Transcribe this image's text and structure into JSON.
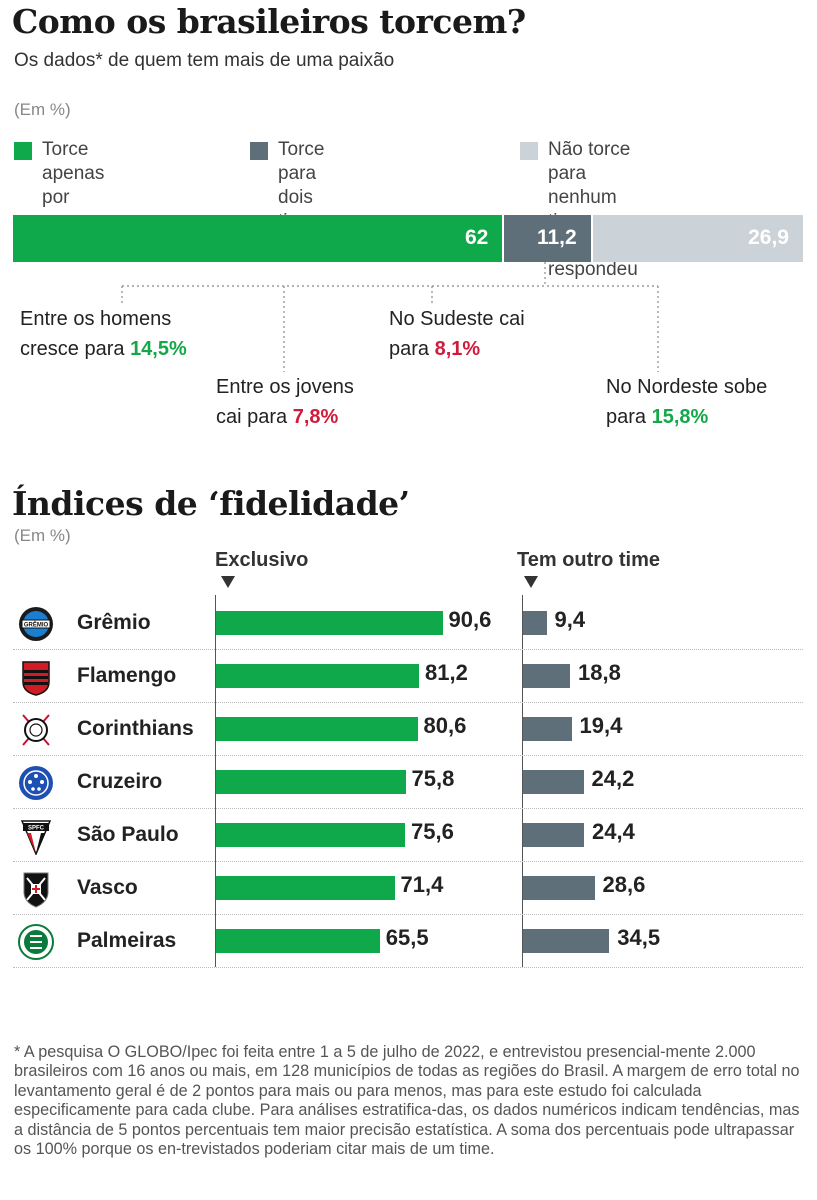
{
  "header": {
    "title": "Como os brasileiros torcem?",
    "subtitle": "Os dados* de quem tem mais de uma paixão",
    "unit": "(Em %)"
  },
  "legend": [
    {
      "label": "Torce apenas por\num time",
      "color": "#0fa84a"
    },
    {
      "label": "Torce para dois times",
      "color": "#5f6f79"
    },
    {
      "label": "Não torce para nenhum time\n/Não respondeu",
      "color": "#ccd3d8"
    }
  ],
  "chart_data": [
    {
      "type": "bar",
      "orientation": "horizontal-stacked",
      "categories": [
        "Torce apenas por um time",
        "Torce para dois times",
        "Não torce para nenhum time /Não respondeu"
      ],
      "values": [
        62,
        11.2,
        26.9
      ],
      "value_labels": [
        "62",
        "11,2",
        "26,9"
      ],
      "colors": [
        "#0fa84a",
        "#5f6f79",
        "#ccd3d8"
      ],
      "annotations": [
        {
          "text": "Entre os homens\ncresce para ",
          "value": "14,5%",
          "trend": "up"
        },
        {
          "text": "Entre os jovens\ncai para ",
          "value": "7,8%",
          "trend": "down"
        },
        {
          "text": "No Sudeste cai\npara ",
          "value": "8,1%",
          "trend": "down"
        },
        {
          "text": "No Nordeste sobe\npara ",
          "value": "15,8%",
          "trend": "up"
        }
      ]
    },
    {
      "type": "bar",
      "orientation": "horizontal",
      "title": "Índices de ‘fidelidade’",
      "unit": "(Em %)",
      "categories": [
        "Grêmio",
        "Flamengo",
        "Corinthians",
        "Cruzeiro",
        "São Paulo",
        "Vasco",
        "Palmeiras"
      ],
      "series": [
        {
          "name": "Exclusivo",
          "values": [
            90.6,
            81.2,
            80.6,
            75.8,
            75.6,
            71.4,
            65.5
          ],
          "labels": [
            "90,6",
            "81,2",
            "80,6",
            "75,8",
            "75,6",
            "71,4",
            "65,5"
          ],
          "color": "#0fa84a"
        },
        {
          "name": "Tem outro time",
          "values": [
            9.4,
            18.8,
            19.4,
            24.2,
            24.4,
            28.6,
            34.5
          ],
          "labels": [
            "9,4",
            "18,8",
            "19,4",
            "24,2",
            "24,4",
            "28,6",
            "34,5"
          ],
          "color": "#5f6f79"
        }
      ],
      "crest_icons": [
        "gremio-crest-icon",
        "flamengo-crest-icon",
        "corinthians-crest-icon",
        "cruzeiro-crest-icon",
        "sao-paulo-crest-icon",
        "vasco-crest-icon",
        "palmeiras-crest-icon"
      ],
      "crest_text": [
        "GRÊMIO",
        "",
        "",
        "",
        "SPFC",
        "",
        ""
      ]
    }
  ],
  "footnote": "* A pesquisa O GLOBO/Ipec foi feita entre 1 a 5 de julho de 2022, e entrevistou presencial-mente 2.000 brasileiros com 16 anos ou mais, em 128 municípios de todas as regiões do Brasil. A margem de erro total no levantamento geral é de 2 pontos para mais ou para menos, mas para este estudo foi calculada especificamente para cada clube. Para análises estratifica-das, os dados numéricos indicam tendências, mas a distância de 5 pontos percentuais tem maior precisão estatística. A soma dos percentuais pode ultrapassar os 100% porque os en-trevistados poderiam citar mais de um time."
}
